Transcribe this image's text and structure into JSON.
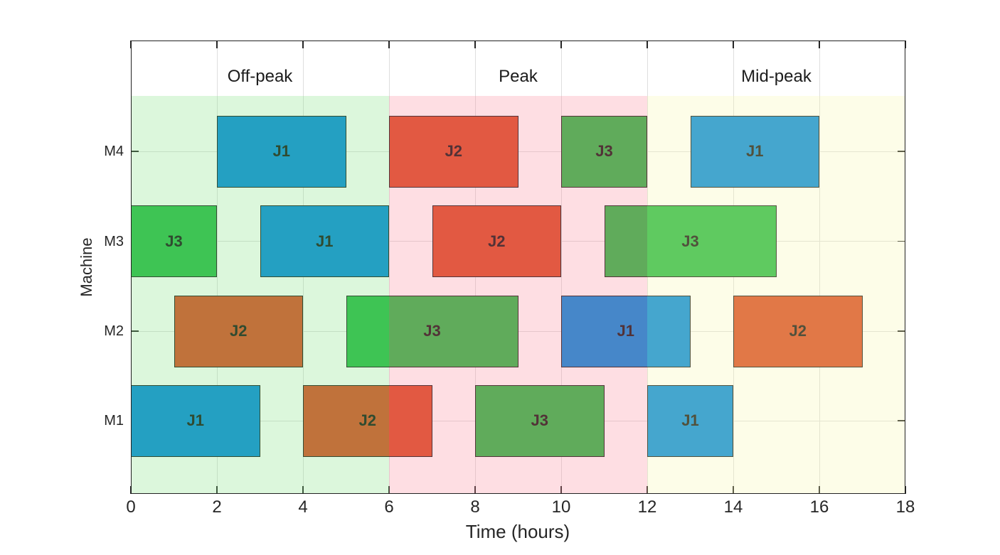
{
  "chart_data": {
    "type": "bar",
    "subtype": "gantt-schedule",
    "title": "",
    "xlabel": "Time (hours)",
    "ylabel": "Machine",
    "xlim": [
      0,
      18
    ],
    "x_ticks": [
      "0",
      "2",
      "4",
      "6",
      "8",
      "10",
      "12",
      "14",
      "16",
      "18"
    ],
    "y_categories": [
      "M1",
      "M2",
      "M3",
      "M4"
    ],
    "grid": true,
    "legend": "none",
    "regions": [
      {
        "label": "Off-peak",
        "start": 0,
        "end": 6,
        "overlay_color": "rgba(130,228,130,0.28)"
      },
      {
        "label": "Peak",
        "start": 6,
        "end": 12,
        "overlay_color": "rgba(250,138,155,0.28)"
      },
      {
        "label": "Mid-peak",
        "start": 12,
        "end": 18,
        "overlay_color": "rgba(248,248,172,0.28)"
      }
    ],
    "job_colors": {
      "J1": "#0087DC",
      "J2": "#D84720",
      "J3": "#24B943"
    },
    "tasks": [
      {
        "machine": "M1",
        "job": "J1",
        "start": 0,
        "end": 3
      },
      {
        "machine": "M1",
        "job": "J2",
        "start": 4,
        "end": 7
      },
      {
        "machine": "M1",
        "job": "J3",
        "start": 8,
        "end": 11
      },
      {
        "machine": "M1",
        "job": "J1",
        "start": 12,
        "end": 14
      },
      {
        "machine": "M2",
        "job": "J2",
        "start": 1,
        "end": 4
      },
      {
        "machine": "M2",
        "job": "J3",
        "start": 5,
        "end": 9
      },
      {
        "machine": "M2",
        "job": "J1",
        "start": 10,
        "end": 13
      },
      {
        "machine": "M2",
        "job": "J2",
        "start": 14,
        "end": 17
      },
      {
        "machine": "M3",
        "job": "J3",
        "start": 0,
        "end": 2
      },
      {
        "machine": "M3",
        "job": "J1",
        "start": 3,
        "end": 6
      },
      {
        "machine": "M3",
        "job": "J2",
        "start": 7,
        "end": 10
      },
      {
        "machine": "M3",
        "job": "J3",
        "start": 11,
        "end": 15
      },
      {
        "machine": "M4",
        "job": "J1",
        "start": 2,
        "end": 5
      },
      {
        "machine": "M4",
        "job": "J2",
        "start": 6,
        "end": 9
      },
      {
        "machine": "M4",
        "job": "J3",
        "start": 10,
        "end": 12
      },
      {
        "machine": "M4",
        "job": "J1",
        "start": 13,
        "end": 16
      }
    ],
    "colors": {
      "background": "#FFFFFF",
      "grid": "#DEDEDE",
      "axis": "#262626",
      "bar_border": "#141414"
    }
  }
}
